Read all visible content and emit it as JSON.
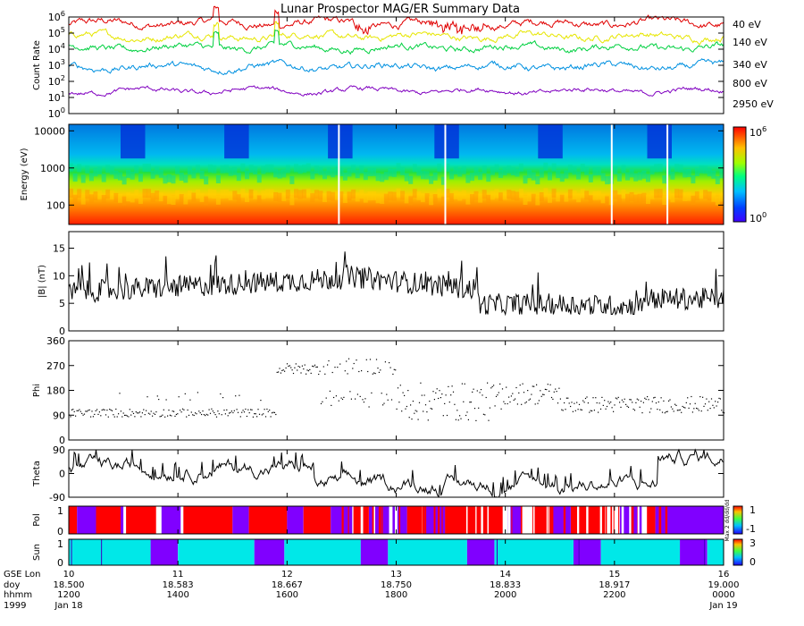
{
  "title": "Lunar Prospector MAG/ER Summary Data",
  "chart_data": [
    {
      "type": "line",
      "panel": "count-rate",
      "ylabel": "Count Rate",
      "yscale": "log",
      "ylim": [
        1,
        1000000
      ],
      "yticks": [
        {
          "base": "10",
          "exp": "0"
        },
        {
          "base": "10",
          "exp": "1"
        },
        {
          "base": "10",
          "exp": "2"
        },
        {
          "base": "10",
          "exp": "3"
        },
        {
          "base": "10",
          "exp": "4"
        },
        {
          "base": "10",
          "exp": "5"
        },
        {
          "base": "10",
          "exp": "6"
        }
      ],
      "series": [
        {
          "name": "40 eV",
          "color": "#e00000",
          "level_log10": 5.6,
          "noise": 0.28
        },
        {
          "name": "140 eV",
          "color": "#e6e600",
          "level_log10": 4.8,
          "noise": 0.25
        },
        {
          "name": "340 eV",
          "color": "#00d040",
          "level_log10": 4.1,
          "noise": 0.25
        },
        {
          "name": "800 eV",
          "color": "#0090e0",
          "level_log10": 2.9,
          "noise": 0.25
        },
        {
          "name": "2950 eV",
          "color": "#8000c0",
          "level_log10": 1.4,
          "noise": 0.18
        }
      ]
    },
    {
      "type": "heatmap",
      "panel": "energy-spectrogram",
      "ylabel": "Energy (eV)",
      "yscale": "log",
      "ylim": [
        30,
        15000
      ],
      "yticks": [
        "100",
        "1000",
        "10000"
      ],
      "colorbar": {
        "min_label": {
          "base": "10",
          "exp": "0"
        },
        "max_label": {
          "base": "10",
          "exp": "6"
        }
      },
      "data_gaps_hours": [
        16.95,
        18.9,
        21.95,
        22.97
      ]
    },
    {
      "type": "line",
      "panel": "field-magnitude",
      "ylabel": "|B| (nT)",
      "ylim": [
        0,
        18
      ],
      "yticks": [
        "0",
        "5",
        "10",
        "15"
      ]
    },
    {
      "type": "scatter",
      "panel": "phi",
      "ylabel": "Phi",
      "ylim": [
        0,
        360
      ],
      "yticks": [
        "0",
        "90",
        "180",
        "270",
        "360"
      ]
    },
    {
      "type": "line",
      "panel": "theta",
      "ylabel": "Theta",
      "ylim": [
        -90,
        90
      ],
      "yticks": [
        "-90",
        "0",
        "90"
      ]
    },
    {
      "type": "heatmap",
      "panel": "polarity",
      "ylabel": "Pol",
      "yticks": [
        "0",
        "1"
      ],
      "colorbar": {
        "labels": [
          "1",
          "-1"
        ],
        "side_text": "Max 2 dd/dd/dd"
      },
      "segments": [
        {
          "start": 12.0,
          "end": 12.15,
          "value": 1
        },
        {
          "start": 12.15,
          "end": 12.5,
          "value": -1
        },
        {
          "start": 12.5,
          "end": 12.95,
          "value": 1
        },
        {
          "start": 12.95,
          "end": 13.0,
          "value": -1
        },
        {
          "start": 13.05,
          "end": 13.6,
          "value": 1
        },
        {
          "start": 13.7,
          "end": 14.05,
          "value": -1
        },
        {
          "start": 14.1,
          "end": 15.0,
          "value": 1
        },
        {
          "start": 15.0,
          "end": 15.3,
          "value": -1
        },
        {
          "start": 15.3,
          "end": 16.0,
          "value": 1
        },
        {
          "start": 16.0,
          "end": 16.3,
          "value": -1
        },
        {
          "start": 16.3,
          "end": 16.8,
          "value": 1
        },
        {
          "start": 16.8,
          "end": 17.2,
          "value": -1
        },
        {
          "start": 17.2,
          "end": 17.5,
          "value": 1
        },
        {
          "start": 17.5,
          "end": 18.2,
          "value": -1
        },
        {
          "start": 18.2,
          "end": 18.5,
          "value": 1
        },
        {
          "start": 18.5,
          "end": 18.9,
          "value": -1
        },
        {
          "start": 18.9,
          "end": 19.95,
          "value": 1
        },
        {
          "start": 20.05,
          "end": 20.3,
          "value": -1
        },
        {
          "start": 20.5,
          "end": 20.8,
          "value": 1
        },
        {
          "start": 20.8,
          "end": 21.2,
          "value": -1
        },
        {
          "start": 21.2,
          "end": 21.8,
          "value": 1
        },
        {
          "start": 22.1,
          "end": 22.5,
          "value": -1
        },
        {
          "start": 22.6,
          "end": 22.75,
          "value": 1
        },
        {
          "start": 22.75,
          "end": 22.95,
          "value": -1
        },
        {
          "start": 22.95,
          "end": 24.0,
          "value": -1
        }
      ]
    },
    {
      "type": "heatmap",
      "panel": "sun",
      "ylabel": "Sun",
      "yticks": [
        "0",
        "1"
      ],
      "colorbar": {
        "labels": [
          "3",
          "0"
        ]
      },
      "segments": [
        {
          "start": 12.0,
          "end": 13.5,
          "value": "sun"
        },
        {
          "start": 13.5,
          "end": 14.0,
          "value": "shadow"
        },
        {
          "start": 14.0,
          "end": 15.4,
          "value": "sun"
        },
        {
          "start": 15.4,
          "end": 15.95,
          "value": "shadow"
        },
        {
          "start": 15.95,
          "end": 17.35,
          "value": "sun"
        },
        {
          "start": 17.35,
          "end": 17.85,
          "value": "shadow"
        },
        {
          "start": 17.85,
          "end": 19.3,
          "value": "sun"
        },
        {
          "start": 19.3,
          "end": 19.8,
          "value": "shadow"
        },
        {
          "start": 19.8,
          "end": 21.25,
          "value": "sun"
        },
        {
          "start": 21.25,
          "end": 21.75,
          "value": "shadow"
        },
        {
          "start": 21.75,
          "end": 23.2,
          "value": "sun"
        },
        {
          "start": 23.2,
          "end": 23.7,
          "value": "shadow"
        },
        {
          "start": 23.7,
          "end": 24.0,
          "value": "sun"
        }
      ]
    }
  ],
  "xaxis": {
    "row_labels": [
      "GSE Lon",
      "doy",
      "hhmm",
      "1999"
    ],
    "ticks": [
      {
        "lon": "10",
        "doy": "18.500",
        "hhmm": "1200",
        "date": "Jan 18"
      },
      {
        "lon": "11",
        "doy": "18.583",
        "hhmm": "1400",
        "date": ""
      },
      {
        "lon": "12",
        "doy": "18.667",
        "hhmm": "1600",
        "date": ""
      },
      {
        "lon": "13",
        "doy": "18.750",
        "hhmm": "1800",
        "date": ""
      },
      {
        "lon": "14",
        "doy": "18.833",
        "hhmm": "2000",
        "date": ""
      },
      {
        "lon": "15",
        "doy": "18.917",
        "hhmm": "2200",
        "date": ""
      },
      {
        "lon": "16",
        "doy": "19.000",
        "hhmm": "0000",
        "date": "Jan 19"
      }
    ]
  }
}
